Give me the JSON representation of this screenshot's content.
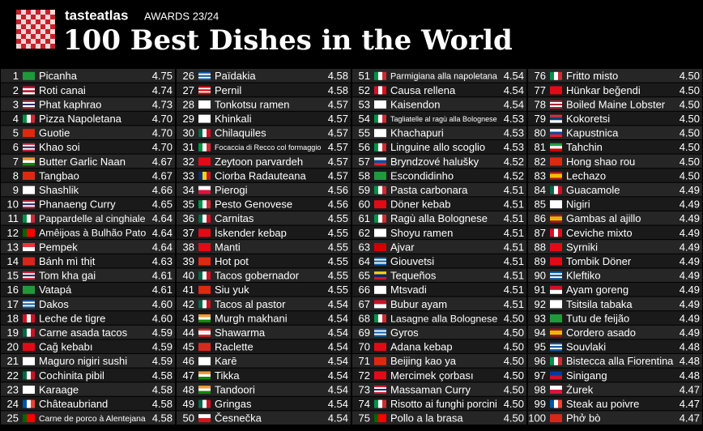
{
  "header": {
    "brand": "tasteatlas",
    "awards": "AWARDS 23/24",
    "title": "100 Best Dishes in the World"
  },
  "dishes": [
    [
      1,
      "Picanha",
      "4.75"
    ],
    [
      2,
      "Roti canai",
      "4.74"
    ],
    [
      3,
      "Phat kaphrao",
      "4.73"
    ],
    [
      4,
      "Pizza Napoletana",
      "4.70"
    ],
    [
      5,
      "Guotie",
      "4.70"
    ],
    [
      6,
      "Khao soi",
      "4.70"
    ],
    [
      7,
      "Butter Garlic Naan",
      "4.67"
    ],
    [
      8,
      "Tangbao",
      "4.67"
    ],
    [
      9,
      "Shashlik",
      "4.66"
    ],
    [
      10,
      "Phanaeng Curry",
      "4.65"
    ],
    [
      11,
      "Pappardelle al cinghiale",
      "4.64"
    ],
    [
      12,
      "Amêijoas à Bulhão Pato",
      "4.64"
    ],
    [
      13,
      "Pempek",
      "4.64"
    ],
    [
      14,
      "Bánh mì thịt",
      "4.63"
    ],
    [
      15,
      "Tom kha gai",
      "4.61"
    ],
    [
      16,
      "Vatapá",
      "4.61"
    ],
    [
      17,
      "Dakos",
      "4.60"
    ],
    [
      18,
      "Leche de tigre",
      "4.60"
    ],
    [
      19,
      "Carne asada tacos",
      "4.59"
    ],
    [
      20,
      "Cağ kebabı",
      "4.59"
    ],
    [
      21,
      "Maguro nigiri sushi",
      "4.59"
    ],
    [
      22,
      "Cochinita pibil",
      "4.58"
    ],
    [
      23,
      "Karaage",
      "4.58"
    ],
    [
      24,
      "Châteaubriand",
      "4.58"
    ],
    [
      25,
      "Carne de porco à Alentejana",
      "4.58"
    ],
    [
      26,
      "Païdakia",
      "4.58"
    ],
    [
      27,
      "Pernil",
      "4.58"
    ],
    [
      28,
      "Tonkotsu ramen",
      "4.57"
    ],
    [
      29,
      "Khinkali",
      "4.57"
    ],
    [
      30,
      "Chilaquiles",
      "4.57"
    ],
    [
      31,
      "Focaccia di Recco col formaggio",
      "4.57"
    ],
    [
      32,
      "Zeytoon parvardeh",
      "4.57"
    ],
    [
      33,
      "Ciorba Radauteana",
      "4.57"
    ],
    [
      34,
      "Pierogi",
      "4.56"
    ],
    [
      35,
      "Pesto Genovese",
      "4.56"
    ],
    [
      36,
      "Carnitas",
      "4.55"
    ],
    [
      37,
      "İskender kebap",
      "4.55"
    ],
    [
      38,
      "Manti",
      "4.55"
    ],
    [
      39,
      "Hot pot",
      "4.55"
    ],
    [
      40,
      "Tacos gobernador",
      "4.55"
    ],
    [
      41,
      "Siu yuk",
      "4.55"
    ],
    [
      42,
      "Tacos al pastor",
      "4.54"
    ],
    [
      43,
      "Murgh makhani",
      "4.54"
    ],
    [
      44,
      "Shawarma",
      "4.54"
    ],
    [
      45,
      "Raclette",
      "4.54"
    ],
    [
      46,
      "Karē",
      "4.54"
    ],
    [
      47,
      "Tikka",
      "4.54"
    ],
    [
      48,
      "Tandoori",
      "4.54"
    ],
    [
      49,
      "Gringas",
      "4.54"
    ],
    [
      50,
      "Česnečka",
      "4.54"
    ],
    [
      51,
      "Parmigiana alla napoletana",
      "4.54"
    ],
    [
      52,
      "Causa rellena",
      "4.54"
    ],
    [
      53,
      "Kaisendon",
      "4.54"
    ],
    [
      54,
      "Tagliatelle al ragù alla Bolognese",
      "4.53"
    ],
    [
      55,
      "Khachapuri",
      "4.53"
    ],
    [
      56,
      "Linguine allo scoglio",
      "4.53"
    ],
    [
      57,
      "Bryndzové halušky",
      "4.52"
    ],
    [
      58,
      "Escondidinho",
      "4.52"
    ],
    [
      59,
      "Pasta carbonara",
      "4.51"
    ],
    [
      60,
      "Döner kebab",
      "4.51"
    ],
    [
      61,
      "Ragù alla Bolognese",
      "4.51"
    ],
    [
      62,
      "Shoyu ramen",
      "4.51"
    ],
    [
      63,
      "Ajvar",
      "4.51"
    ],
    [
      64,
      "Giouvetsi",
      "4.51"
    ],
    [
      65,
      "Tequeños",
      "4.51"
    ],
    [
      66,
      "Mtsvadi",
      "4.51"
    ],
    [
      67,
      "Bubur ayam",
      "4.51"
    ],
    [
      68,
      "Lasagne alla Bolognese",
      "4.50"
    ],
    [
      69,
      "Gyros",
      "4.50"
    ],
    [
      70,
      "Adana kebap",
      "4.50"
    ],
    [
      71,
      "Beijing kao ya",
      "4.50"
    ],
    [
      72,
      "Mercimek çorbası",
      "4.50"
    ],
    [
      73,
      "Massaman Curry",
      "4.50"
    ],
    [
      74,
      "Risotto ai funghi porcini",
      "4.50"
    ],
    [
      75,
      "Pollo a la brasa",
      "4.50"
    ],
    [
      76,
      "Fritto misto",
      "4.50"
    ],
    [
      77,
      "Hünkar beğendi",
      "4.50"
    ],
    [
      78,
      "Boiled Maine Lobster",
      "4.50"
    ],
    [
      79,
      "Kokoretsi",
      "4.50"
    ],
    [
      80,
      "Kapustnica",
      "4.50"
    ],
    [
      81,
      "Tahchin",
      "4.50"
    ],
    [
      82,
      "Hong shao rou",
      "4.50"
    ],
    [
      83,
      "Lechazo",
      "4.50"
    ],
    [
      84,
      "Guacamole",
      "4.49"
    ],
    [
      85,
      "Nigiri",
      "4.49"
    ],
    [
      86,
      "Gambas al ajillo",
      "4.49"
    ],
    [
      87,
      "Ceviche mixto",
      "4.49"
    ],
    [
      88,
      "Syrniki",
      "4.49"
    ],
    [
      89,
      "Tombik Döner",
      "4.49"
    ],
    [
      90,
      "Kleftiko",
      "4.49"
    ],
    [
      91,
      "Ayam goreng",
      "4.49"
    ],
    [
      92,
      "Tsitsila tabaka",
      "4.49"
    ],
    [
      93,
      "Tutu de feijão",
      "4.49"
    ],
    [
      94,
      "Cordero asado",
      "4.49"
    ],
    [
      95,
      "Souvlaki",
      "4.48"
    ],
    [
      96,
      "Bistecca alla Fiorentina",
      "4.48"
    ],
    [
      97,
      "Sinigang",
      "4.48"
    ],
    [
      98,
      "Żurek",
      "4.47"
    ],
    [
      99,
      "Steak au poivre",
      "4.47"
    ],
    [
      100,
      "Phở bò",
      "4.47"
    ]
  ]
}
